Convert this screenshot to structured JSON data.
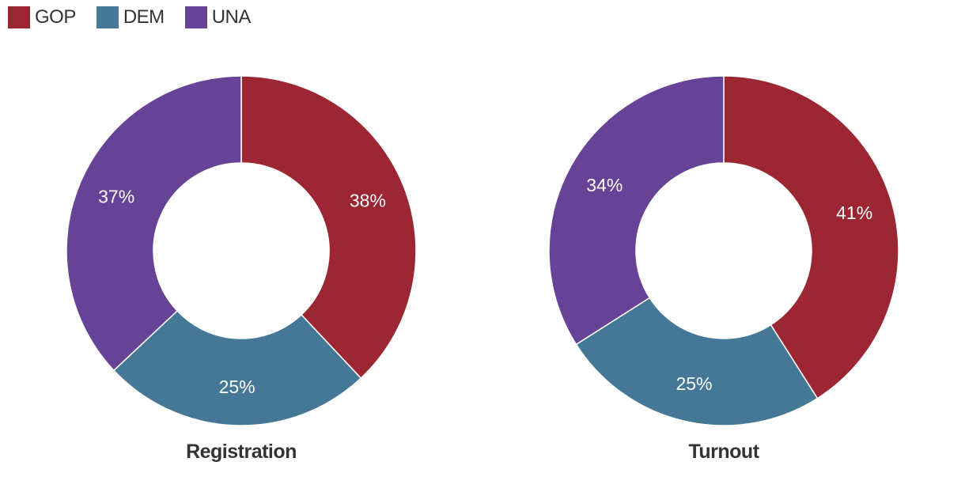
{
  "legend": [
    {
      "label": "GOP",
      "color": "#9d2633"
    },
    {
      "label": "DEM",
      "color": "#447896"
    },
    {
      "label": "UNA",
      "color": "#674397"
    }
  ],
  "chart_data": [
    {
      "type": "pie",
      "title": "Registration",
      "categories": [
        "GOP",
        "DEM",
        "UNA"
      ],
      "values": [
        38,
        25,
        37
      ],
      "labels": [
        "38%",
        "25%",
        "37%"
      ]
    },
    {
      "type": "pie",
      "title": "Turnout",
      "categories": [
        "GOP",
        "DEM",
        "UNA"
      ],
      "values": [
        41,
        25,
        34
      ],
      "labels": [
        "41%",
        "25%",
        "34%"
      ]
    }
  ]
}
